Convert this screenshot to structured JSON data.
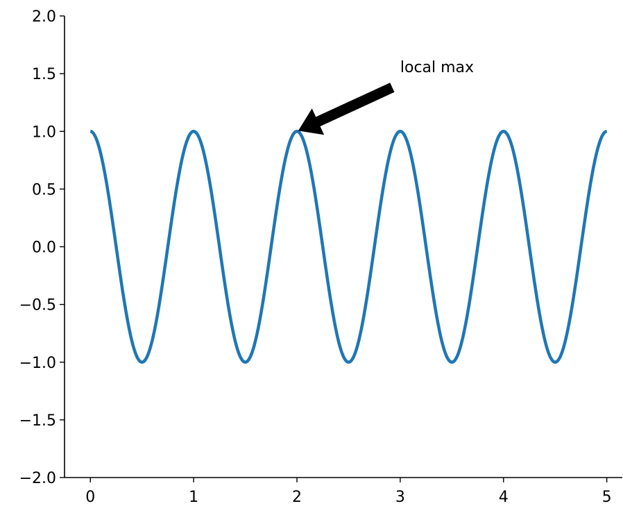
{
  "chart_data": {
    "type": "line",
    "title": "",
    "xlabel": "",
    "ylabel": "",
    "xlim": [
      -0.25,
      5.15
    ],
    "ylim": [
      -2.0,
      2.0
    ],
    "xticks": [
      0,
      1,
      2,
      3,
      4,
      5
    ],
    "xtick_labels": [
      "0",
      "1",
      "2",
      "3",
      "4",
      "5"
    ],
    "yticks": [
      -2.0,
      -1.5,
      -1.0,
      -0.5,
      0.0,
      0.5,
      1.0,
      1.5,
      2.0
    ],
    "ytick_labels": [
      "−2.0",
      "−1.5",
      "−1.0",
      "−0.5",
      "0.0",
      "0.5",
      "1.0",
      "1.5",
      "2.0"
    ],
    "grid": false,
    "series": [
      {
        "function": "cos(2*pi*x)",
        "x_range": [
          0,
          5
        ],
        "color": "#1f77b4"
      }
    ],
    "annotations": [
      {
        "text": "local max",
        "xy": [
          2,
          1
        ],
        "xytext": [
          3,
          1.5
        ],
        "arrow_color": "#000000"
      }
    ]
  }
}
